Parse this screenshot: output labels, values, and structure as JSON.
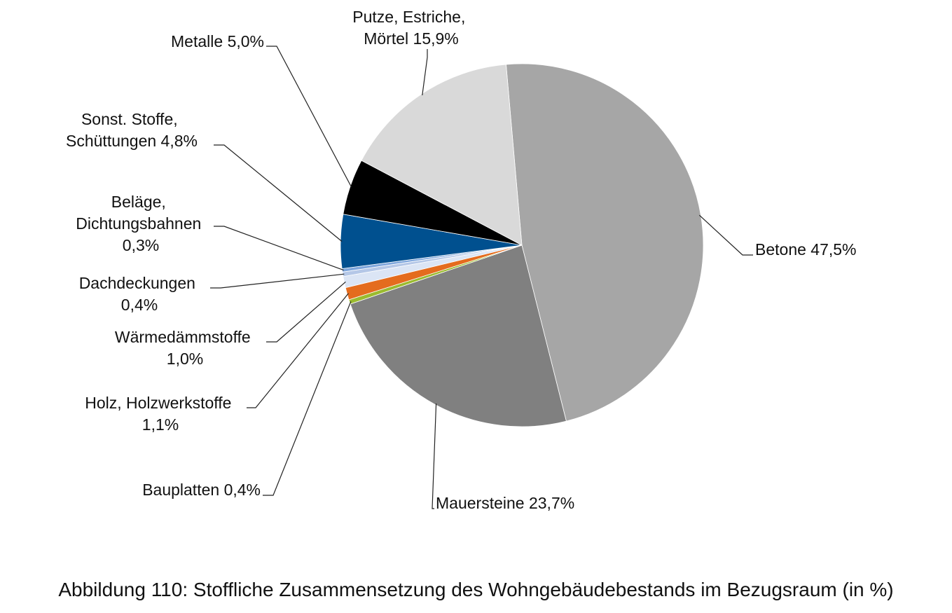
{
  "caption": "Abbildung 110: Stoffliche Zusammensetzung des Wohngebäudebestands im Bezugsraum (in %)",
  "chart_data": {
    "type": "pie",
    "title": "",
    "slices": [
      {
        "label": "Betone",
        "value": 47.5,
        "value_text": "47,5%",
        "color": "#a6a6a6"
      },
      {
        "label": "Mauersteine",
        "value": 23.7,
        "value_text": "23,7%",
        "color": "#808080"
      },
      {
        "label": "Bauplatten",
        "value": 0.4,
        "value_text": "0,4%",
        "color": "#9bbb2f"
      },
      {
        "label": "Holz, Holzwerkstoffe",
        "value": 1.1,
        "value_text": "1,1%",
        "color": "#e46c1e"
      },
      {
        "label": "Wärmedämmstoffe",
        "value": 1.0,
        "value_text": "1,0%",
        "color": "#dbe5f5"
      },
      {
        "label": "Dachdeckungen",
        "value": 0.4,
        "value_text": "0,4%",
        "color": "#b4c7e7"
      },
      {
        "label": "Beläge, Dichtungsbahnen",
        "value": 0.3,
        "value_text": "0,3%",
        "color": "#7ea6dc"
      },
      {
        "label": "Sonst. Stoffe, Schüttungen",
        "value": 4.8,
        "value_text": "4,8%",
        "color": "#00508f"
      },
      {
        "label": "Metalle",
        "value": 5.0,
        "value_text": "5,0%",
        "color": "#000000"
      },
      {
        "label": "Putze, Estriche, Mörtel",
        "value": 15.9,
        "value_text": "15,9%",
        "color": "#d9d9d9"
      }
    ]
  }
}
